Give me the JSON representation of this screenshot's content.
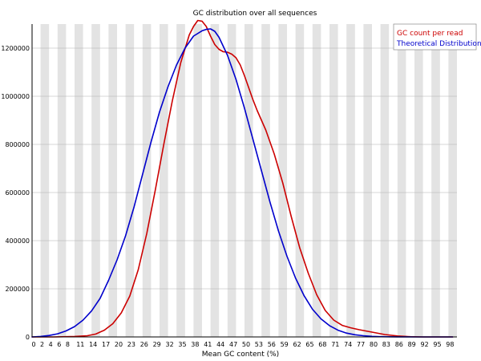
{
  "chart_data": {
    "type": "line",
    "title": "GC distribution over all sequences",
    "xlabel": "Mean GC content (%)",
    "ylabel": "",
    "xlim": [
      0,
      100
    ],
    "ylim": [
      0,
      1300000
    ],
    "y_ticks": [
      0,
      200000,
      400000,
      600000,
      800000,
      1000000,
      1200000
    ],
    "x_tick_labels": [
      "0",
      "2",
      "4",
      "6",
      "8",
      "11",
      "14",
      "17",
      "20",
      "23",
      "26",
      "29",
      "32",
      "35",
      "38",
      "41",
      "44",
      "47",
      "50",
      "53",
      "56",
      "59",
      "62",
      "65",
      "68",
      "71",
      "74",
      "77",
      "80",
      "83",
      "86",
      "89",
      "92",
      "95",
      "98"
    ],
    "x_tick_values": [
      0,
      2,
      4,
      6,
      8,
      11,
      14,
      17,
      20,
      23,
      26,
      29,
      32,
      35,
      38,
      41,
      44,
      47,
      50,
      53,
      56,
      59,
      62,
      65,
      68,
      71,
      74,
      77,
      80,
      83,
      86,
      89,
      92,
      95,
      98
    ],
    "band_count": 50,
    "legend_position": "top-right",
    "series": [
      {
        "name": "GC count per read",
        "color": "#cc0000",
        "x": [
          0,
          5,
          10,
          13,
          15,
          17,
          19,
          21,
          23,
          25,
          27,
          29,
          31,
          33,
          35,
          37,
          38,
          39,
          40,
          41,
          42,
          43,
          44,
          45,
          46,
          47,
          48,
          49,
          50,
          51,
          52,
          53,
          55,
          57,
          59,
          61,
          63,
          65,
          67,
          69,
          71,
          73,
          75,
          77,
          80,
          83,
          86,
          89,
          92,
          95,
          99
        ],
        "y": [
          0,
          0,
          2000,
          5000,
          12000,
          28000,
          55000,
          100000,
          170000,
          280000,
          430000,
          610000,
          800000,
          980000,
          1140000,
          1255000,
          1290000,
          1315000,
          1312000,
          1290000,
          1250000,
          1215000,
          1195000,
          1185000,
          1183000,
          1175000,
          1160000,
          1130000,
          1085000,
          1035000,
          985000,
          940000,
          860000,
          760000,
          640000,
          500000,
          370000,
          265000,
          175000,
          110000,
          70000,
          48000,
          38000,
          30000,
          20000,
          10000,
          4000,
          1000,
          0,
          0,
          0
        ]
      },
      {
        "name": "Theoretical Distribution",
        "color": "#0000cc",
        "x": [
          0,
          2,
          4,
          6,
          8,
          10,
          12,
          14,
          16,
          18,
          20,
          22,
          24,
          26,
          28,
          30,
          32,
          34,
          36,
          38,
          40,
          41,
          42,
          43,
          44,
          46,
          48,
          50,
          52,
          54,
          56,
          58,
          60,
          62,
          64,
          66,
          68,
          70,
          72,
          74,
          76,
          78,
          80,
          82,
          84,
          86,
          88,
          90,
          94,
          99
        ],
        "y": [
          0,
          2000,
          6000,
          13000,
          25000,
          43000,
          70000,
          108000,
          160000,
          235000,
          320000,
          420000,
          540000,
          675000,
          810000,
          935000,
          1040000,
          1130000,
          1200000,
          1250000,
          1272000,
          1278000,
          1280000,
          1270000,
          1245000,
          1170000,
          1070000,
          950000,
          820000,
          690000,
          560000,
          440000,
          335000,
          245000,
          172000,
          115000,
          75000,
          47000,
          28000,
          16000,
          9000,
          5000,
          2500,
          1200,
          500,
          200,
          80,
          30,
          5,
          0
        ]
      }
    ]
  }
}
